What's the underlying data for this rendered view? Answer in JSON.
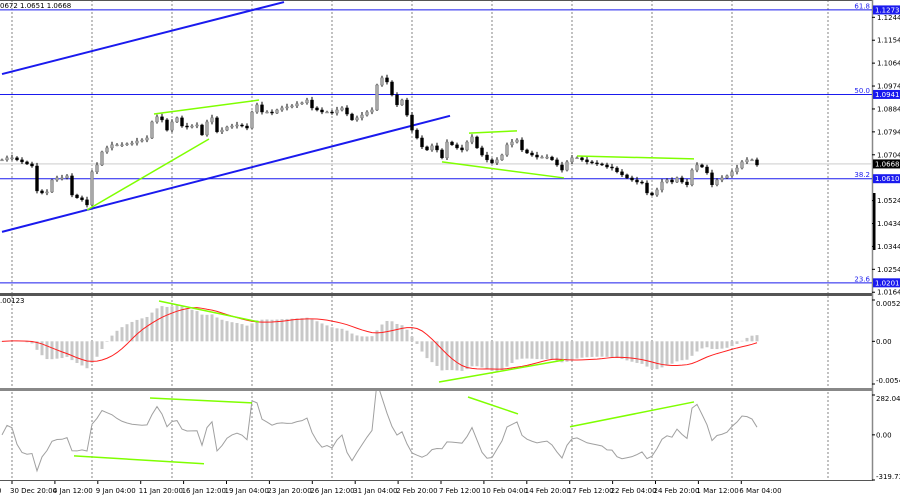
{
  "header": {
    "ohlc_text": "0672 1.0651 1.0668",
    "macd_value_text": ".00123"
  },
  "colors": {
    "trendline": "#1a1aee",
    "divergence": "#7fff00",
    "signal": "#ff2020",
    "histogram": "#c8c8c8",
    "cci": "#a0a0a0",
    "bull": "#a8a8a8",
    "bear": "#000000",
    "fib_label_bg": "#1a1aee",
    "price_label_bg": "#000000"
  },
  "chart_data": [
    {
      "type": "candlestick",
      "ylim": [
        1.0161,
        1.1312
      ],
      "closes": [
        1.0684,
        1.0692,
        1.0692,
        1.0684,
        1.0676,
        1.0668,
        1.066,
        1.0562,
        1.0554,
        1.0558,
        1.0605,
        1.0613,
        1.0613,
        1.0621,
        1.0546,
        1.0535,
        1.0527,
        1.0507,
        1.0637,
        1.0664,
        1.0715,
        1.0731,
        1.0743,
        1.0743,
        1.0743,
        1.0747,
        1.075,
        1.0758,
        1.0762,
        1.077,
        1.0833,
        1.0853,
        1.0841,
        1.0801,
        1.0833,
        1.0849,
        1.0817,
        1.0813,
        1.0817,
        1.0821,
        1.0782,
        1.0833,
        1.0849,
        1.0794,
        1.0801,
        1.0813,
        1.0817,
        1.0821,
        1.0817,
        1.0809,
        1.0872,
        1.09,
        1.0872,
        1.0872,
        1.0868,
        1.088,
        1.0888,
        1.0892,
        1.0896,
        1.0904,
        1.0908,
        1.0919,
        1.0888,
        1.088,
        1.0872,
        1.0872,
        1.0868,
        1.088,
        1.0888,
        1.0864,
        1.0841,
        1.0849,
        1.086,
        1.0872,
        1.088,
        1.0978,
        1.1006,
        1.099,
        1.0939,
        1.09,
        1.0919,
        1.086,
        1.0801,
        1.077,
        1.0735,
        1.0723,
        1.0739,
        1.0723,
        1.0692,
        1.0754,
        1.0743,
        1.0731,
        1.0723,
        1.0754,
        1.0774,
        1.0731,
        1.0703,
        1.0684,
        1.0672,
        1.0684,
        1.0703,
        1.0743,
        1.0754,
        1.0762,
        1.0723,
        1.0711,
        1.0703,
        1.0695,
        1.0695,
        1.0695,
        1.0684,
        1.0664,
        1.0644,
        1.0676,
        1.0692,
        1.0692,
        1.0684,
        1.0676,
        1.0672,
        1.0668,
        1.0664,
        1.0656,
        1.0652,
        1.0637,
        1.0625,
        1.0613,
        1.0605,
        1.0597,
        1.0593,
        1.0554,
        1.0546,
        1.0566,
        1.0597,
        1.0605,
        1.0597,
        1.0613,
        1.0597,
        1.0586,
        1.0644,
        1.0664,
        1.0656,
        1.0633,
        1.0586,
        1.0605,
        1.0613,
        1.0621,
        1.0637,
        1.0652,
        1.0676,
        1.0684,
        1.0684,
        1.0664
      ],
      "current_price": {
        "value": 1.0668,
        "label": "1.0668"
      },
      "price_ticks": [
        "1.1244",
        "1.1154",
        "1.1064",
        "1.0974",
        "1.0884",
        "1.0794",
        "1.0704",
        "1.0524",
        "1.0434",
        "1.0344",
        "1.0254",
        "1.0164"
      ],
      "fibonacci_levels": [
        {
          "level": "61.8",
          "price": 1.1273,
          "label": "1.1273"
        },
        {
          "level": "50.0",
          "price": 1.0941,
          "label": "1.0941"
        },
        {
          "level": "38.2",
          "price": 1.061,
          "label": "1.0610"
        },
        {
          "level": "23.6",
          "price": 1.0201,
          "label": "1.0201"
        }
      ],
      "trendlines": [
        {
          "from": [
            0,
            1.0401
          ],
          "to": [
            89.6,
            1.0857
          ]
        },
        {
          "from": [
            0,
            1.1021
          ],
          "to": [
            56.4,
            1.1304
          ]
        }
      ],
      "divergence_lines": [
        {
          "from": [
            17,
            1.0487
          ],
          "to": [
            41.4,
            1.0766
          ]
        },
        {
          "from": [
            30.4,
            1.0864
          ],
          "to": [
            51.4,
            1.0919
          ]
        },
        {
          "from": [
            88,
            1.0676
          ],
          "to": [
            112.4,
            1.0613
          ]
        },
        {
          "from": [
            93.4,
            1.0789
          ],
          "to": [
            103,
            1.0798
          ]
        },
        {
          "from": [
            115,
            1.0699
          ],
          "to": [
            138.4,
            1.0688
          ]
        }
      ],
      "time_labels": [
        "0",
        "30 Dec 20:00",
        "4 Jan 12:00",
        "9 Jan 04:00",
        "11 Jan 20:00",
        "16 Jan 12:00",
        "19 Jan 04:00",
        "23 Jan 20:00",
        "26 Jan 12:00",
        "31 Jan 04:00",
        "2 Feb 20:00",
        "7 Feb 12:00",
        "10 Feb 04:00",
        "14 Feb 20:00",
        "17 Feb 12:00",
        "22 Feb 04:00",
        "24 Feb 20:00",
        "1 Mar 12:00",
        "6 Mar 04:00"
      ]
    },
    {
      "type": "bar",
      "indicator": "MACD",
      "ylim": [
        -0.00543,
        0.00526
      ],
      "ticks": [
        "0.00526",
        "0.00",
        "-0.00543"
      ],
      "divergence_lines": [
        {
          "from": [
            31.4,
            0.00513
          ],
          "to": [
            51.4,
            0.00246
          ]
        },
        {
          "from": [
            87.4,
            -0.00518
          ],
          "to": [
            112.4,
            -0.00238
          ]
        }
      ]
    },
    {
      "type": "line",
      "indicator": "CCI",
      "ylim": [
        -319.735,
        282.0497
      ],
      "ticks": [
        "282.0497",
        "0.00",
        "-319.735"
      ],
      "divergence_lines": [
        {
          "from": [
            14.4,
            -149
          ],
          "to": [
            40.4,
            -205
          ]
        },
        {
          "from": [
            29.6,
            261
          ],
          "to": [
            50,
            226
          ]
        },
        {
          "from": [
            93.2,
            268
          ],
          "to": [
            103.2,
            148
          ]
        },
        {
          "from": [
            113.6,
            57
          ],
          "to": [
            138.4,
            233
          ]
        }
      ]
    }
  ]
}
